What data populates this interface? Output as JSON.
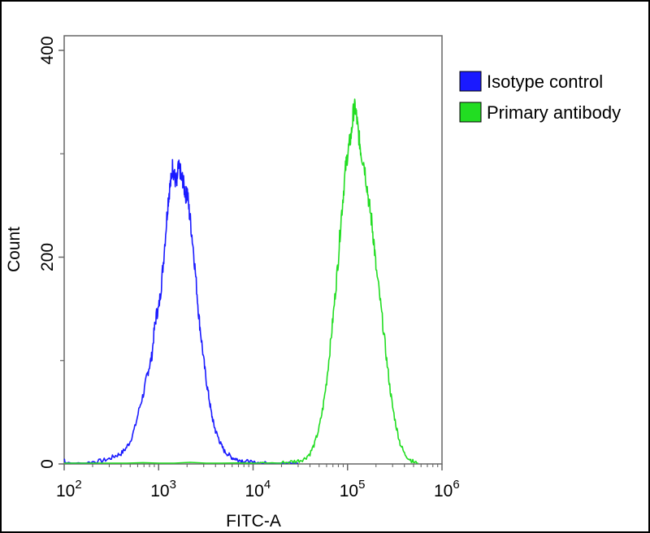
{
  "chart_data": {
    "type": "line",
    "xlabel": "FITC-A",
    "ylabel": "Count",
    "x_scale": "log10",
    "xlim": [
      100,
      1000000
    ],
    "ylim": [
      0,
      400
    ],
    "x_ticks": [
      {
        "value": 100,
        "base": "10",
        "exp": "2"
      },
      {
        "value": 1000,
        "base": "10",
        "exp": "3"
      },
      {
        "value": 10000,
        "base": "10",
        "exp": "4"
      },
      {
        "value": 100000,
        "base": "10",
        "exp": "5"
      },
      {
        "value": 1000000,
        "base": "10",
        "exp": "6"
      }
    ],
    "y_ticks": [
      {
        "value": 0,
        "label": "0"
      },
      {
        "value": 200,
        "label": "200"
      },
      {
        "value": 400,
        "label": "400"
      }
    ],
    "y_minor_ticks": [
      100,
      300
    ],
    "grid": false,
    "legend_position": "top-right",
    "series": [
      {
        "name": "Isotype control",
        "color": "#1a1aff",
        "x": [
          100,
          105,
          150,
          200,
          250,
          300,
          350,
          400,
          450,
          500,
          560,
          630,
          700,
          750,
          800,
          850,
          900,
          950,
          1000,
          1060,
          1120,
          1200,
          1260,
          1300,
          1360,
          1410,
          1450,
          1500,
          1560,
          1600,
          1680,
          1750,
          1800,
          1880,
          1950,
          2000,
          2100,
          2200,
          2350,
          2500,
          2650,
          2800,
          3000,
          3200,
          3400,
          3600,
          3800,
          4000,
          4300,
          4600,
          5000,
          5500,
          6000,
          6500,
          7000,
          8000,
          9000,
          10000,
          12000,
          15000,
          20000,
          25000,
          30000
        ],
        "y": [
          5,
          0,
          0,
          2,
          3,
          5,
          8,
          10,
          15,
          22,
          35,
          55,
          70,
          85,
          95,
          105,
          130,
          145,
          150,
          170,
          195,
          230,
          255,
          265,
          275,
          290,
          280,
          275,
          270,
          285,
          285,
          275,
          275,
          265,
          260,
          265,
          245,
          230,
          205,
          175,
          145,
          125,
          100,
          80,
          65,
          50,
          40,
          32,
          25,
          18,
          12,
          9,
          6,
          5,
          4,
          3,
          2,
          1,
          1,
          0,
          0,
          0,
          0
        ]
      },
      {
        "name": "Primary antibody",
        "color": "#22dd22",
        "x": [
          100,
          1000,
          10000,
          20000,
          25000,
          30000,
          35000,
          40000,
          45000,
          50000,
          55000,
          60000,
          65000,
          70000,
          75000,
          80000,
          85000,
          90000,
          95000,
          100000,
          105000,
          110000,
          115000,
          120000,
          125000,
          130000,
          135000,
          140000,
          150000,
          160000,
          170000,
          180000,
          190000,
          200000,
          220000,
          240000,
          260000,
          280000,
          300000,
          330000,
          360000,
          400000,
          450000,
          500000,
          560000
        ],
        "y": [
          0,
          0,
          0,
          1,
          2,
          3,
          5,
          10,
          20,
          35,
          55,
          80,
          110,
          140,
          170,
          200,
          235,
          260,
          285,
          300,
          310,
          320,
          340,
          345,
          335,
          320,
          310,
          300,
          290,
          270,
          250,
          235,
          215,
          190,
          160,
          130,
          100,
          75,
          55,
          35,
          20,
          10,
          5,
          2,
          0
        ]
      }
    ]
  }
}
